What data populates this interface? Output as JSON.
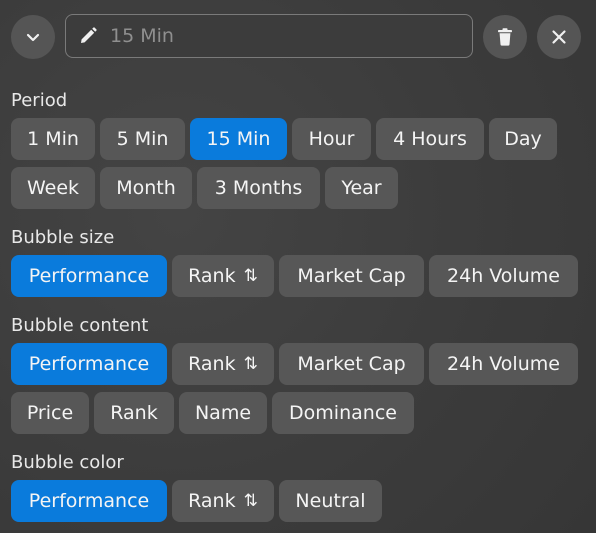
{
  "header": {
    "collapse_icon": "chevron-down-icon",
    "name_placeholder": "15 Min",
    "delete_icon": "trash-icon",
    "close_icon": "close-icon"
  },
  "sections": {
    "period": {
      "label": "Period",
      "row1": [
        "1 Min",
        "5 Min",
        "15 Min",
        "Hour",
        "4 Hours",
        "Day"
      ],
      "row2": [
        "Week",
        "Month",
        "3 Months",
        "Year"
      ],
      "selected": "15 Min"
    },
    "bubble_size": {
      "label": "Bubble size",
      "options": [
        "Performance",
        "Rank",
        "Market Cap",
        "24h Volume"
      ],
      "selected": "Performance"
    },
    "bubble_content": {
      "label": "Bubble content",
      "row1": [
        "Performance",
        "Rank",
        "Market Cap",
        "24h Volume"
      ],
      "row2": [
        "Price",
        "Rank",
        "Name",
        "Dominance"
      ],
      "selected": "Performance"
    },
    "bubble_color": {
      "label": "Bubble color",
      "options": [
        "Performance",
        "Rank",
        "Neutral"
      ],
      "selected": "Performance"
    }
  },
  "sort_glyph": "⇅",
  "colors": {
    "accent": "#0a7bdc",
    "chip": "#575757",
    "panel": "#3e3e3e"
  }
}
